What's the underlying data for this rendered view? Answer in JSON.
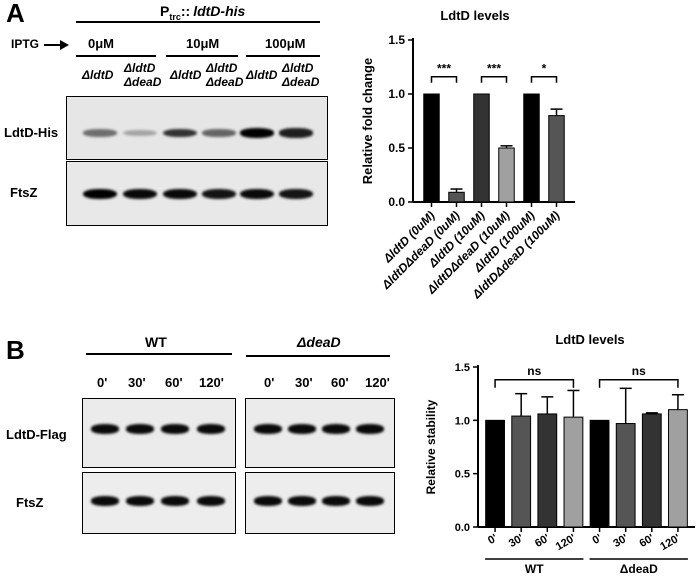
{
  "panel_a": {
    "letter": "A",
    "construct": {
      "prefix": "P",
      "sub": "trc",
      "sep": "::",
      "gene": "ldtD-his"
    },
    "iptg_label": "IPTG",
    "doses": [
      "0μM",
      "10μM",
      "100μM"
    ],
    "strain_single": "ΔldtD",
    "strain_double_line1": "ΔldtD",
    "strain_double_line2": "ΔdeaD",
    "blot_labels": [
      "LdtD-His",
      "FtsZ"
    ],
    "ldtd_band_intensity": [
      0.45,
      0.18,
      0.75,
      0.5,
      1.0,
      0.85
    ],
    "ftsz_band_intensity": [
      1.0,
      0.95,
      0.95,
      0.9,
      0.95,
      0.9
    ]
  },
  "panel_b": {
    "letter": "B",
    "groups": [
      "WT",
      "ΔdeaD"
    ],
    "timepoints": [
      "0'",
      "30'",
      "60'",
      "120'"
    ],
    "blot_labels": [
      "LdtD-Flag",
      "FtsZ"
    ]
  },
  "chart_data": [
    {
      "type": "bar",
      "title": "LdtD levels",
      "ylabel": "Relative fold change",
      "xlabel": "",
      "ylim": [
        0,
        1.5
      ],
      "yticks": [
        "0.0",
        "0.5",
        "1.0",
        "1.5"
      ],
      "categories": [
        "ΔldtD (0uM)",
        "ΔldtDΔdeaD (0uM)",
        "ΔldtD (10uM)",
        "ΔldtDΔdeaD (10uM)",
        "ΔldtD (100uM)",
        "ΔldtDΔdeaD (100uM)"
      ],
      "values": [
        1.0,
        0.09,
        1.0,
        0.5,
        1.0,
        0.8
      ],
      "errors": [
        0,
        0.03,
        0,
        0.02,
        0,
        0.06
      ],
      "colors": [
        "#000000",
        "#555555",
        "#333333",
        "#a0a0a0",
        "#000000",
        "#555555"
      ],
      "significance": [
        {
          "pair": [
            0,
            1
          ],
          "label": "***"
        },
        {
          "pair": [
            2,
            3
          ],
          "label": "***"
        },
        {
          "pair": [
            4,
            5
          ],
          "label": "*"
        }
      ],
      "grid": false
    },
    {
      "type": "bar",
      "title": "LdtD levels",
      "ylabel": "Relative stability",
      "xlabel": "",
      "ylim": [
        0,
        1.5
      ],
      "yticks": [
        "0.0",
        "0.5",
        "1.0",
        "1.5"
      ],
      "categories": [
        "0'",
        "30'",
        "60'",
        "120'",
        "0'",
        "30'",
        "60'",
        "120'"
      ],
      "values": [
        1.0,
        1.04,
        1.06,
        1.03,
        1.0,
        0.97,
        1.06,
        1.1
      ],
      "errors": [
        0,
        0.21,
        0.16,
        0.25,
        0,
        0.33,
        0.01,
        0.14
      ],
      "colors": [
        "#000000",
        "#555555",
        "#333333",
        "#a0a0a0",
        "#000000",
        "#555555",
        "#333333",
        "#a0a0a0"
      ],
      "groups": [
        {
          "label": "WT",
          "span": [
            0,
            3
          ]
        },
        {
          "label": "ΔdeaD",
          "span": [
            4,
            7
          ]
        }
      ],
      "significance": [
        {
          "pair": [
            0,
            3
          ],
          "label": "ns"
        },
        {
          "pair": [
            4,
            7
          ],
          "label": "ns"
        }
      ],
      "grid": false
    }
  ]
}
